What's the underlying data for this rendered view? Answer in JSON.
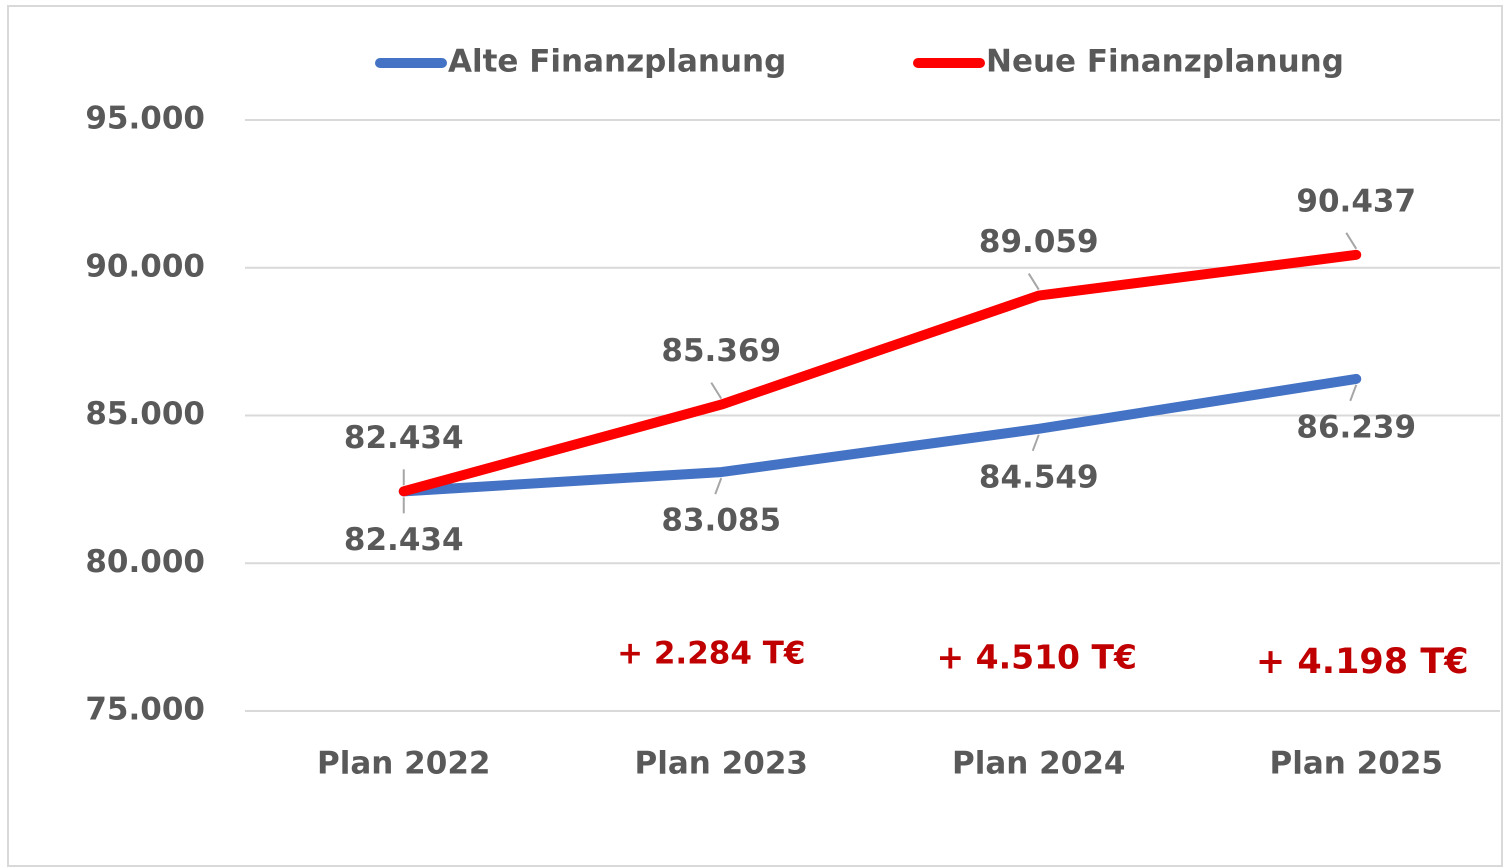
{
  "chart_data": {
    "type": "line",
    "categories": [
      "Plan 2022",
      "Plan 2023",
      "Plan 2024",
      "Plan 2025"
    ],
    "series": [
      {
        "name": "Alte Finanzplanung",
        "color": "#4472c4",
        "values": [
          82434,
          83085,
          84549,
          86239
        ],
        "value_labels": [
          "82.434",
          "83.085",
          "84.549",
          "86.239"
        ]
      },
      {
        "name": "Neue Finanzplanung",
        "color": "#ff0000",
        "values": [
          82434,
          85369,
          89059,
          90437
        ],
        "value_labels": [
          "82.434",
          "85.369",
          "89.059",
          "90.437"
        ]
      }
    ],
    "ylim": [
      75000,
      95000
    ],
    "yticks": [
      {
        "value": 75000,
        "label": "75.000"
      },
      {
        "value": 80000,
        "label": "80.000"
      },
      {
        "value": 85000,
        "label": "85.000"
      },
      {
        "value": 90000,
        "label": "90.000"
      },
      {
        "value": 95000,
        "label": "95.000"
      }
    ],
    "grid": true,
    "legend": "top",
    "annotations": [
      "+ 2.284 T€",
      "+ 4.510 T€",
      "+ 4.198 T€"
    ],
    "annotation_color": "#c00000"
  }
}
